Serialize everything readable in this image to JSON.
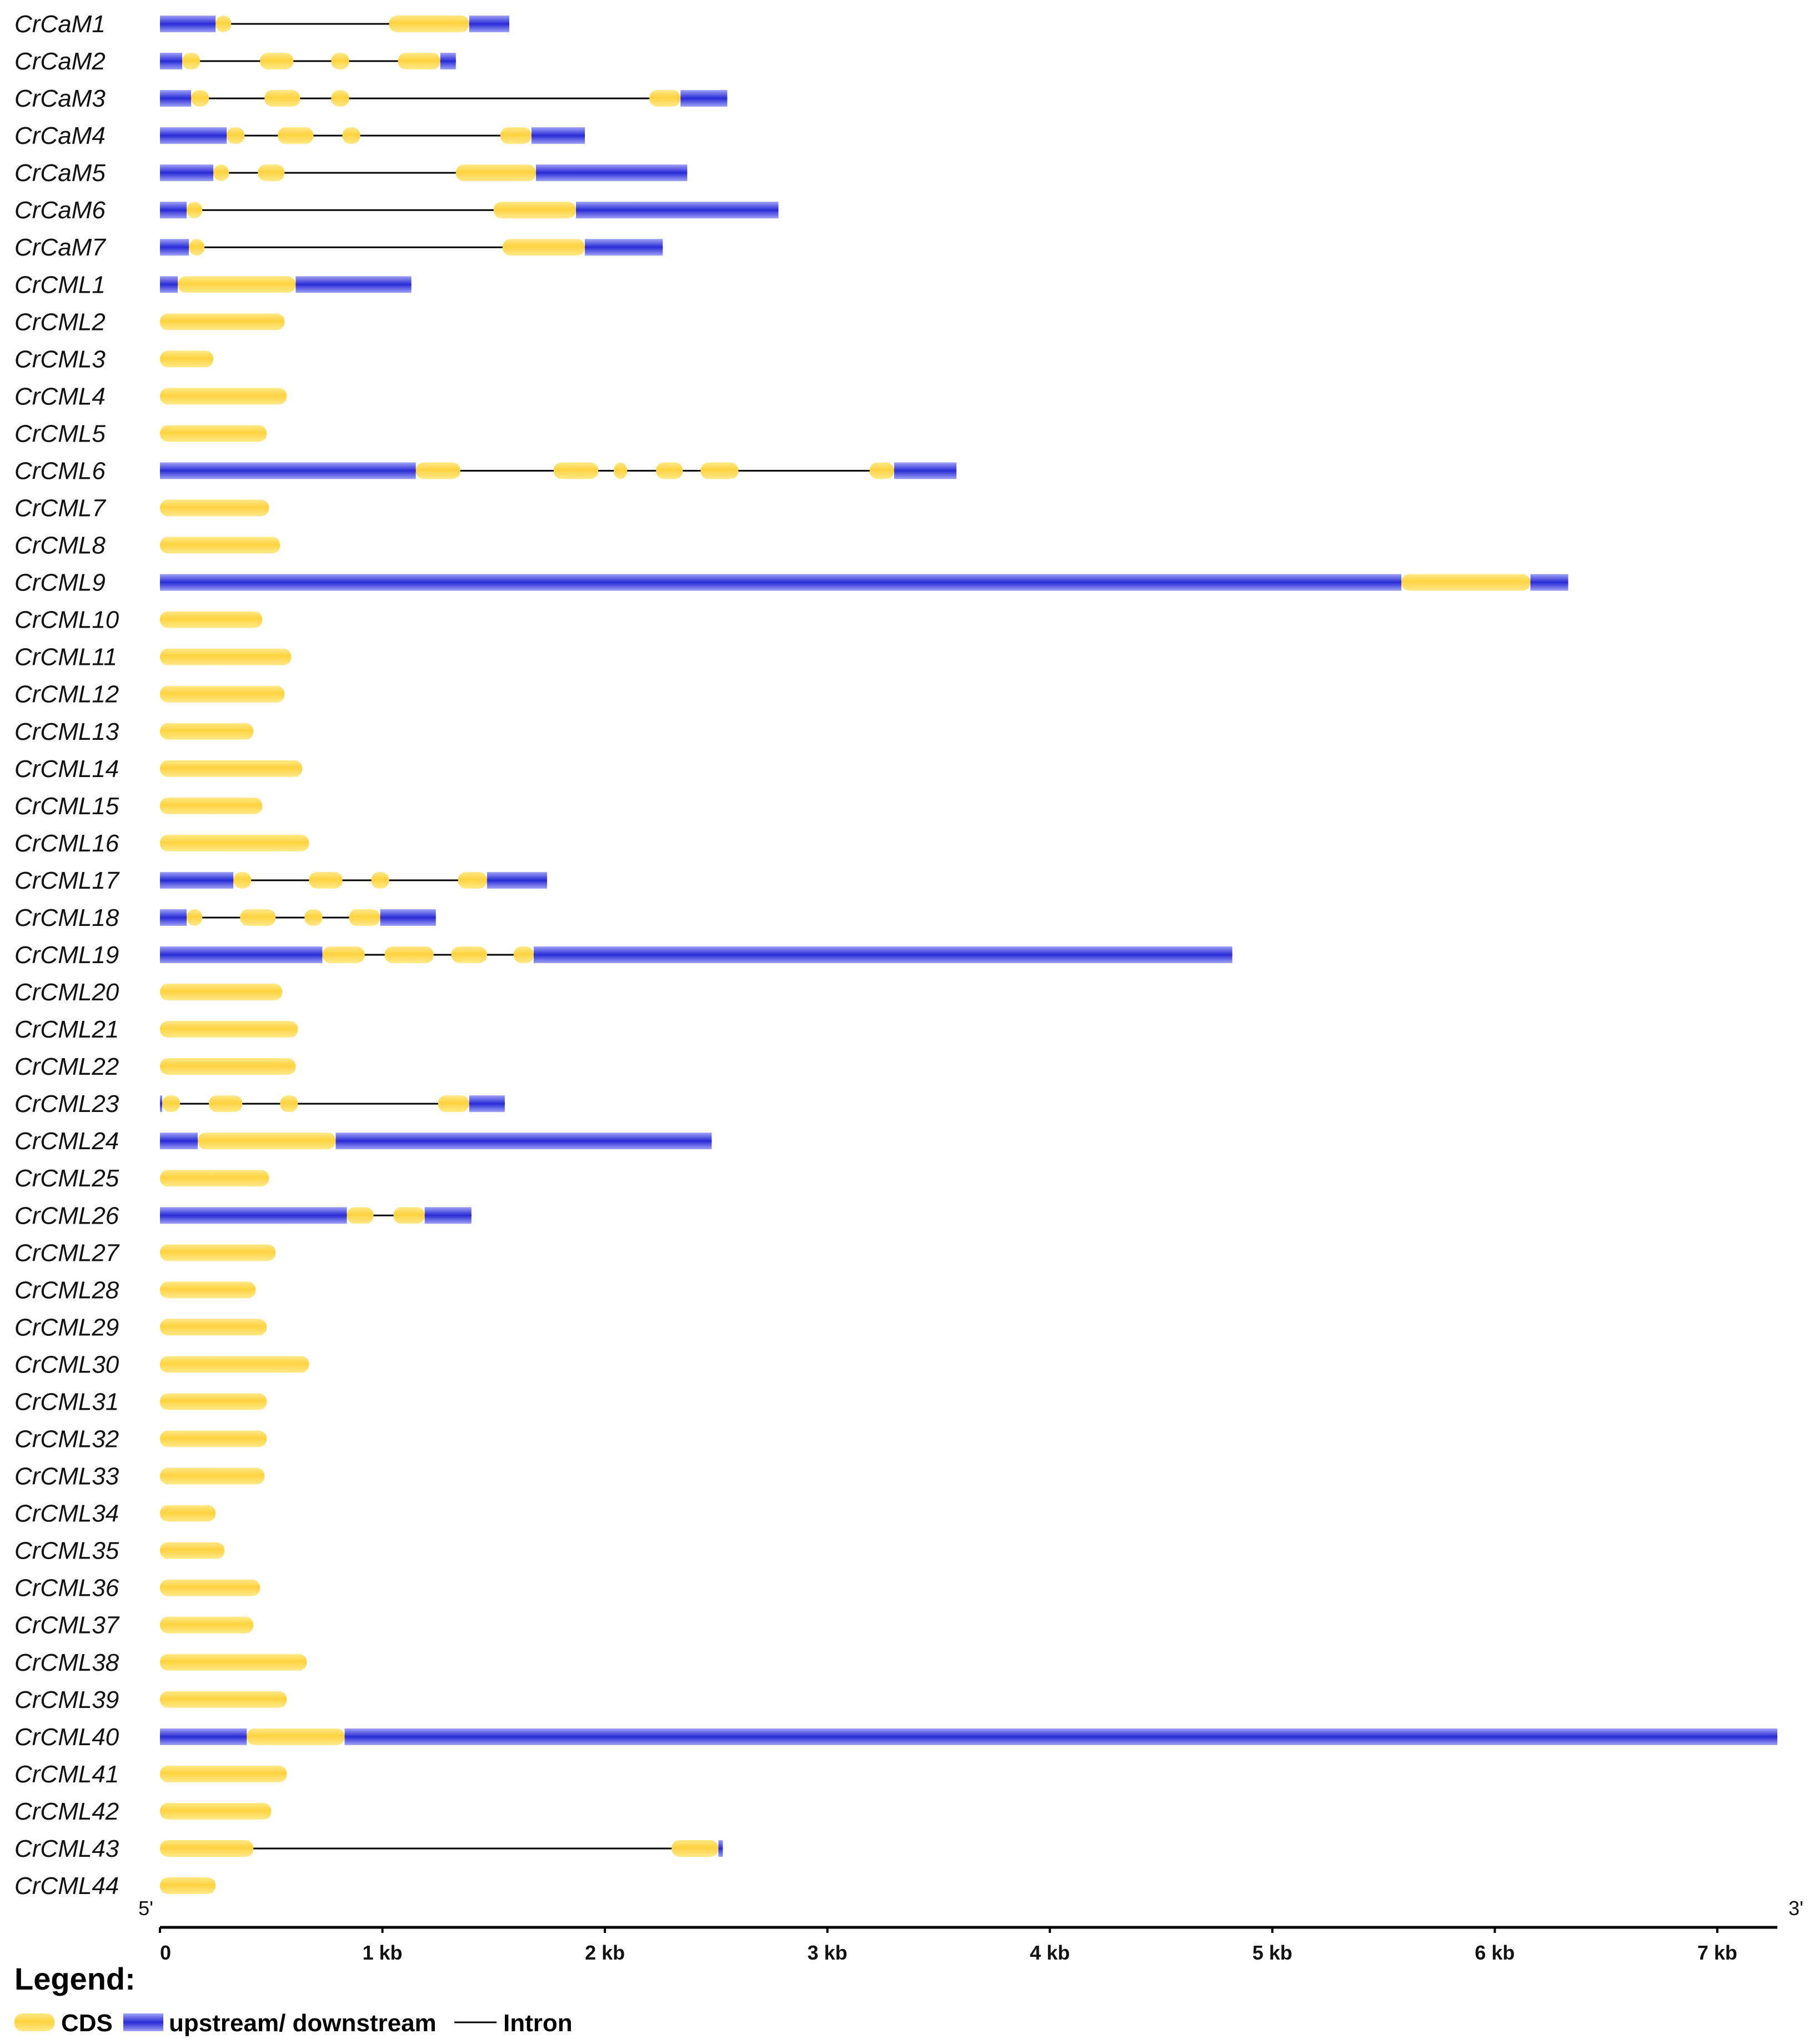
{
  "chart_data": {
    "type": "gene-structure",
    "x_unit": "kb",
    "x_range": [
      0,
      7.27
    ],
    "end_labels": {
      "left": "5'",
      "right": "3'"
    },
    "x_ticks": [
      {
        "value": 0,
        "label": "0"
      },
      {
        "value": 1,
        "label": "1 kb"
      },
      {
        "value": 2,
        "label": "2 kb"
      },
      {
        "value": 3,
        "label": "3 kb"
      },
      {
        "value": 4,
        "label": "4 kb"
      },
      {
        "value": 5,
        "label": "5 kb"
      },
      {
        "value": 6,
        "label": "6 kb"
      },
      {
        "value": 7,
        "label": "7 kb"
      }
    ],
    "colors": {
      "cds": "#ffd23f",
      "cds_light": "#fff1a8",
      "utr": "#2a2ad6",
      "utr_light": "#9ea2f5",
      "intron": "#000000"
    },
    "genes": [
      {
        "name": "CrCaM1",
        "length": 1.57,
        "utr": [
          [
            0,
            0.25
          ],
          [
            1.39,
            1.57
          ]
        ],
        "cds": [
          [
            0.25,
            0.32
          ],
          [
            1.03,
            1.39
          ]
        ]
      },
      {
        "name": "CrCaM2",
        "length": 1.33,
        "utr": [
          [
            0,
            0.1
          ],
          [
            1.26,
            1.33
          ]
        ],
        "cds": [
          [
            0.1,
            0.18
          ],
          [
            0.45,
            0.6
          ],
          [
            0.77,
            0.85
          ],
          [
            1.07,
            1.26
          ]
        ]
      },
      {
        "name": "CrCaM3",
        "length": 2.55,
        "utr": [
          [
            0,
            0.14
          ],
          [
            2.34,
            2.55
          ]
        ],
        "cds": [
          [
            0.14,
            0.22
          ],
          [
            0.47,
            0.63
          ],
          [
            0.77,
            0.85
          ],
          [
            2.2,
            2.34
          ]
        ]
      },
      {
        "name": "CrCaM4",
        "length": 1.91,
        "utr": [
          [
            0,
            0.3
          ],
          [
            1.67,
            1.91
          ]
        ],
        "cds": [
          [
            0.3,
            0.38
          ],
          [
            0.53,
            0.69
          ],
          [
            0.82,
            0.9
          ],
          [
            1.53,
            1.67
          ]
        ]
      },
      {
        "name": "CrCaM5",
        "length": 2.37,
        "utr": [
          [
            0,
            0.24
          ],
          [
            1.69,
            2.37
          ]
        ],
        "cds": [
          [
            0.24,
            0.31
          ],
          [
            0.44,
            0.56
          ],
          [
            1.33,
            1.69
          ]
        ]
      },
      {
        "name": "CrCaM6",
        "length": 2.78,
        "utr": [
          [
            0,
            0.12
          ],
          [
            1.87,
            2.78
          ]
        ],
        "cds": [
          [
            0.12,
            0.19
          ],
          [
            1.5,
            1.87
          ]
        ]
      },
      {
        "name": "CrCaM7",
        "length": 2.26,
        "utr": [
          [
            0,
            0.13
          ],
          [
            1.91,
            2.26
          ]
        ],
        "cds": [
          [
            0.13,
            0.2
          ],
          [
            1.54,
            1.91
          ]
        ]
      },
      {
        "name": "CrCML1",
        "length": 1.13,
        "utr": [
          [
            0,
            0.08
          ],
          [
            0.61,
            1.13
          ]
        ],
        "cds": [
          [
            0.08,
            0.61
          ]
        ]
      },
      {
        "name": "CrCML2",
        "length": 0.56,
        "utr": [],
        "cds": [
          [
            0,
            0.56
          ]
        ]
      },
      {
        "name": "CrCML3",
        "length": 0.24,
        "utr": [],
        "cds": [
          [
            0,
            0.24
          ]
        ]
      },
      {
        "name": "CrCML4",
        "length": 0.57,
        "utr": [],
        "cds": [
          [
            0,
            0.57
          ]
        ]
      },
      {
        "name": "CrCML5",
        "length": 0.48,
        "utr": [],
        "cds": [
          [
            0,
            0.48
          ]
        ]
      },
      {
        "name": "CrCML6",
        "length": 3.58,
        "utr": [
          [
            0,
            1.15
          ],
          [
            3.3,
            3.58
          ]
        ],
        "cds": [
          [
            1.15,
            1.35
          ],
          [
            1.77,
            1.97
          ],
          [
            2.04,
            2.1
          ],
          [
            2.23,
            2.35
          ],
          [
            2.43,
            2.6
          ],
          [
            3.19,
            3.3
          ]
        ]
      },
      {
        "name": "CrCML7",
        "length": 0.49,
        "utr": [],
        "cds": [
          [
            0,
            0.49
          ]
        ]
      },
      {
        "name": "CrCML8",
        "length": 0.54,
        "utr": [],
        "cds": [
          [
            0,
            0.54
          ]
        ]
      },
      {
        "name": "CrCML9",
        "length": 6.33,
        "utr": [
          [
            0,
            5.58
          ],
          [
            6.16,
            6.33
          ]
        ],
        "cds": [
          [
            5.58,
            6.16
          ]
        ]
      },
      {
        "name": "CrCML10",
        "length": 0.46,
        "utr": [],
        "cds": [
          [
            0,
            0.46
          ]
        ]
      },
      {
        "name": "CrCML11",
        "length": 0.59,
        "utr": [],
        "cds": [
          [
            0,
            0.59
          ]
        ]
      },
      {
        "name": "CrCML12",
        "length": 0.56,
        "utr": [],
        "cds": [
          [
            0,
            0.56
          ]
        ]
      },
      {
        "name": "CrCML13",
        "length": 0.42,
        "utr": [],
        "cds": [
          [
            0,
            0.42
          ]
        ]
      },
      {
        "name": "CrCML14",
        "length": 0.64,
        "utr": [],
        "cds": [
          [
            0,
            0.64
          ]
        ]
      },
      {
        "name": "CrCML15",
        "length": 0.46,
        "utr": [],
        "cds": [
          [
            0,
            0.46
          ]
        ]
      },
      {
        "name": "CrCML16",
        "length": 0.67,
        "utr": [],
        "cds": [
          [
            0,
            0.67
          ]
        ]
      },
      {
        "name": "CrCML17",
        "length": 1.74,
        "utr": [
          [
            0,
            0.33
          ],
          [
            1.47,
            1.74
          ]
        ],
        "cds": [
          [
            0.33,
            0.41
          ],
          [
            0.67,
            0.82
          ],
          [
            0.95,
            1.03
          ],
          [
            1.34,
            1.47
          ]
        ]
      },
      {
        "name": "CrCML18",
        "length": 1.24,
        "utr": [
          [
            0,
            0.12
          ],
          [
            0.99,
            1.24
          ]
        ],
        "cds": [
          [
            0.12,
            0.19
          ],
          [
            0.36,
            0.52
          ],
          [
            0.65,
            0.73
          ],
          [
            0.85,
            0.99
          ]
        ]
      },
      {
        "name": "CrCML19",
        "length": 4.82,
        "utr": [
          [
            0,
            0.73
          ],
          [
            1.68,
            4.82
          ]
        ],
        "cds": [
          [
            0.73,
            0.92
          ],
          [
            1.01,
            1.23
          ],
          [
            1.31,
            1.47
          ],
          [
            1.59,
            1.68
          ]
        ]
      },
      {
        "name": "CrCML20",
        "length": 0.55,
        "utr": [],
        "cds": [
          [
            0,
            0.55
          ]
        ]
      },
      {
        "name": "CrCML21",
        "length": 0.62,
        "utr": [],
        "cds": [
          [
            0,
            0.62
          ]
        ]
      },
      {
        "name": "CrCML22",
        "length": 0.61,
        "utr": [],
        "cds": [
          [
            0,
            0.61
          ]
        ]
      },
      {
        "name": "CrCML23",
        "length": 1.55,
        "utr": [
          [
            0,
            0.01
          ],
          [
            1.39,
            1.55
          ]
        ],
        "cds": [
          [
            0.01,
            0.09
          ],
          [
            0.22,
            0.37
          ],
          [
            0.54,
            0.62
          ],
          [
            1.25,
            1.39
          ]
        ]
      },
      {
        "name": "CrCML24",
        "length": 2.48,
        "utr": [
          [
            0,
            0.17
          ],
          [
            0.79,
            2.48
          ]
        ],
        "cds": [
          [
            0.17,
            0.79
          ]
        ]
      },
      {
        "name": "CrCML25",
        "length": 0.49,
        "utr": [],
        "cds": [
          [
            0,
            0.49
          ]
        ]
      },
      {
        "name": "CrCML26",
        "length": 1.4,
        "utr": [
          [
            0,
            0.84
          ],
          [
            1.19,
            1.4
          ]
        ],
        "cds": [
          [
            0.84,
            0.96
          ],
          [
            1.05,
            1.19
          ]
        ]
      },
      {
        "name": "CrCML27",
        "length": 0.52,
        "utr": [],
        "cds": [
          [
            0,
            0.52
          ]
        ]
      },
      {
        "name": "CrCML28",
        "length": 0.43,
        "utr": [],
        "cds": [
          [
            0,
            0.43
          ]
        ]
      },
      {
        "name": "CrCML29",
        "length": 0.48,
        "utr": [],
        "cds": [
          [
            0,
            0.48
          ]
        ]
      },
      {
        "name": "CrCML30",
        "length": 0.67,
        "utr": [],
        "cds": [
          [
            0,
            0.67
          ]
        ]
      },
      {
        "name": "CrCML31",
        "length": 0.48,
        "utr": [],
        "cds": [
          [
            0,
            0.48
          ]
        ]
      },
      {
        "name": "CrCML32",
        "length": 0.48,
        "utr": [],
        "cds": [
          [
            0,
            0.48
          ]
        ]
      },
      {
        "name": "CrCML33",
        "length": 0.47,
        "utr": [],
        "cds": [
          [
            0,
            0.47
          ]
        ]
      },
      {
        "name": "CrCML34",
        "length": 0.25,
        "utr": [],
        "cds": [
          [
            0,
            0.25
          ]
        ]
      },
      {
        "name": "CrCML35",
        "length": 0.29,
        "utr": [],
        "cds": [
          [
            0,
            0.29
          ]
        ]
      },
      {
        "name": "CrCML36",
        "length": 0.45,
        "utr": [],
        "cds": [
          [
            0,
            0.45
          ]
        ]
      },
      {
        "name": "CrCML37",
        "length": 0.42,
        "utr": [],
        "cds": [
          [
            0,
            0.42
          ]
        ]
      },
      {
        "name": "CrCML38",
        "length": 0.66,
        "utr": [],
        "cds": [
          [
            0,
            0.66
          ]
        ]
      },
      {
        "name": "CrCML39",
        "length": 0.57,
        "utr": [],
        "cds": [
          [
            0,
            0.57
          ]
        ]
      },
      {
        "name": "CrCML40",
        "length": 7.27,
        "utr": [
          [
            0,
            0.39
          ],
          [
            0.83,
            7.27
          ]
        ],
        "cds": [
          [
            0.39,
            0.83
          ]
        ]
      },
      {
        "name": "CrCML41",
        "length": 0.57,
        "utr": [],
        "cds": [
          [
            0,
            0.57
          ]
        ]
      },
      {
        "name": "CrCML42",
        "length": 0.5,
        "utr": [],
        "cds": [
          [
            0,
            0.5
          ]
        ]
      },
      {
        "name": "CrCML43",
        "length": 2.53,
        "utr": [
          [
            2.51,
            2.53
          ]
        ],
        "cds": [
          [
            0,
            0.42
          ],
          [
            2.3,
            2.51
          ]
        ]
      },
      {
        "name": "CrCML44",
        "length": 0.25,
        "utr": [],
        "cds": [
          [
            0,
            0.25
          ]
        ]
      }
    ]
  },
  "legend": {
    "title": "Legend:",
    "items": [
      {
        "key": "cds",
        "label": "CDS"
      },
      {
        "key": "utr",
        "label": "upstream/ downstream"
      },
      {
        "key": "intron",
        "label": "Intron"
      }
    ]
  }
}
